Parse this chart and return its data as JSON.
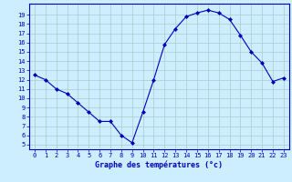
{
  "x": [
    0,
    1,
    2,
    3,
    4,
    5,
    6,
    7,
    8,
    9,
    10,
    11,
    12,
    13,
    14,
    15,
    16,
    17,
    18,
    19,
    20,
    21,
    22,
    23
  ],
  "y": [
    12.5,
    12.0,
    11.0,
    10.5,
    9.5,
    8.5,
    7.5,
    7.5,
    6.0,
    5.2,
    8.5,
    12.0,
    15.8,
    17.5,
    18.8,
    19.2,
    19.5,
    19.2,
    18.5,
    16.8,
    15.0,
    13.8,
    11.8,
    12.2
  ],
  "line_color": "#0000bb",
  "marker": "D",
  "marker_size": 2.0,
  "bg_color": "#cceeff",
  "grid_color": "#aacccc",
  "xlabel": "Graphe des températures (°c)",
  "ylabel_ticks": [
    5,
    6,
    7,
    8,
    9,
    10,
    11,
    12,
    13,
    14,
    15,
    16,
    17,
    18,
    19
  ],
  "xlim": [
    -0.5,
    23.5
  ],
  "ylim": [
    4.5,
    20.2
  ],
  "xlabel_color": "#0000bb",
  "axis_color": "#0000bb",
  "tick_color": "#0000bb",
  "linewidth": 0.8,
  "fontsize_ticks": 5.0,
  "fontsize_xlabel": 6.0
}
